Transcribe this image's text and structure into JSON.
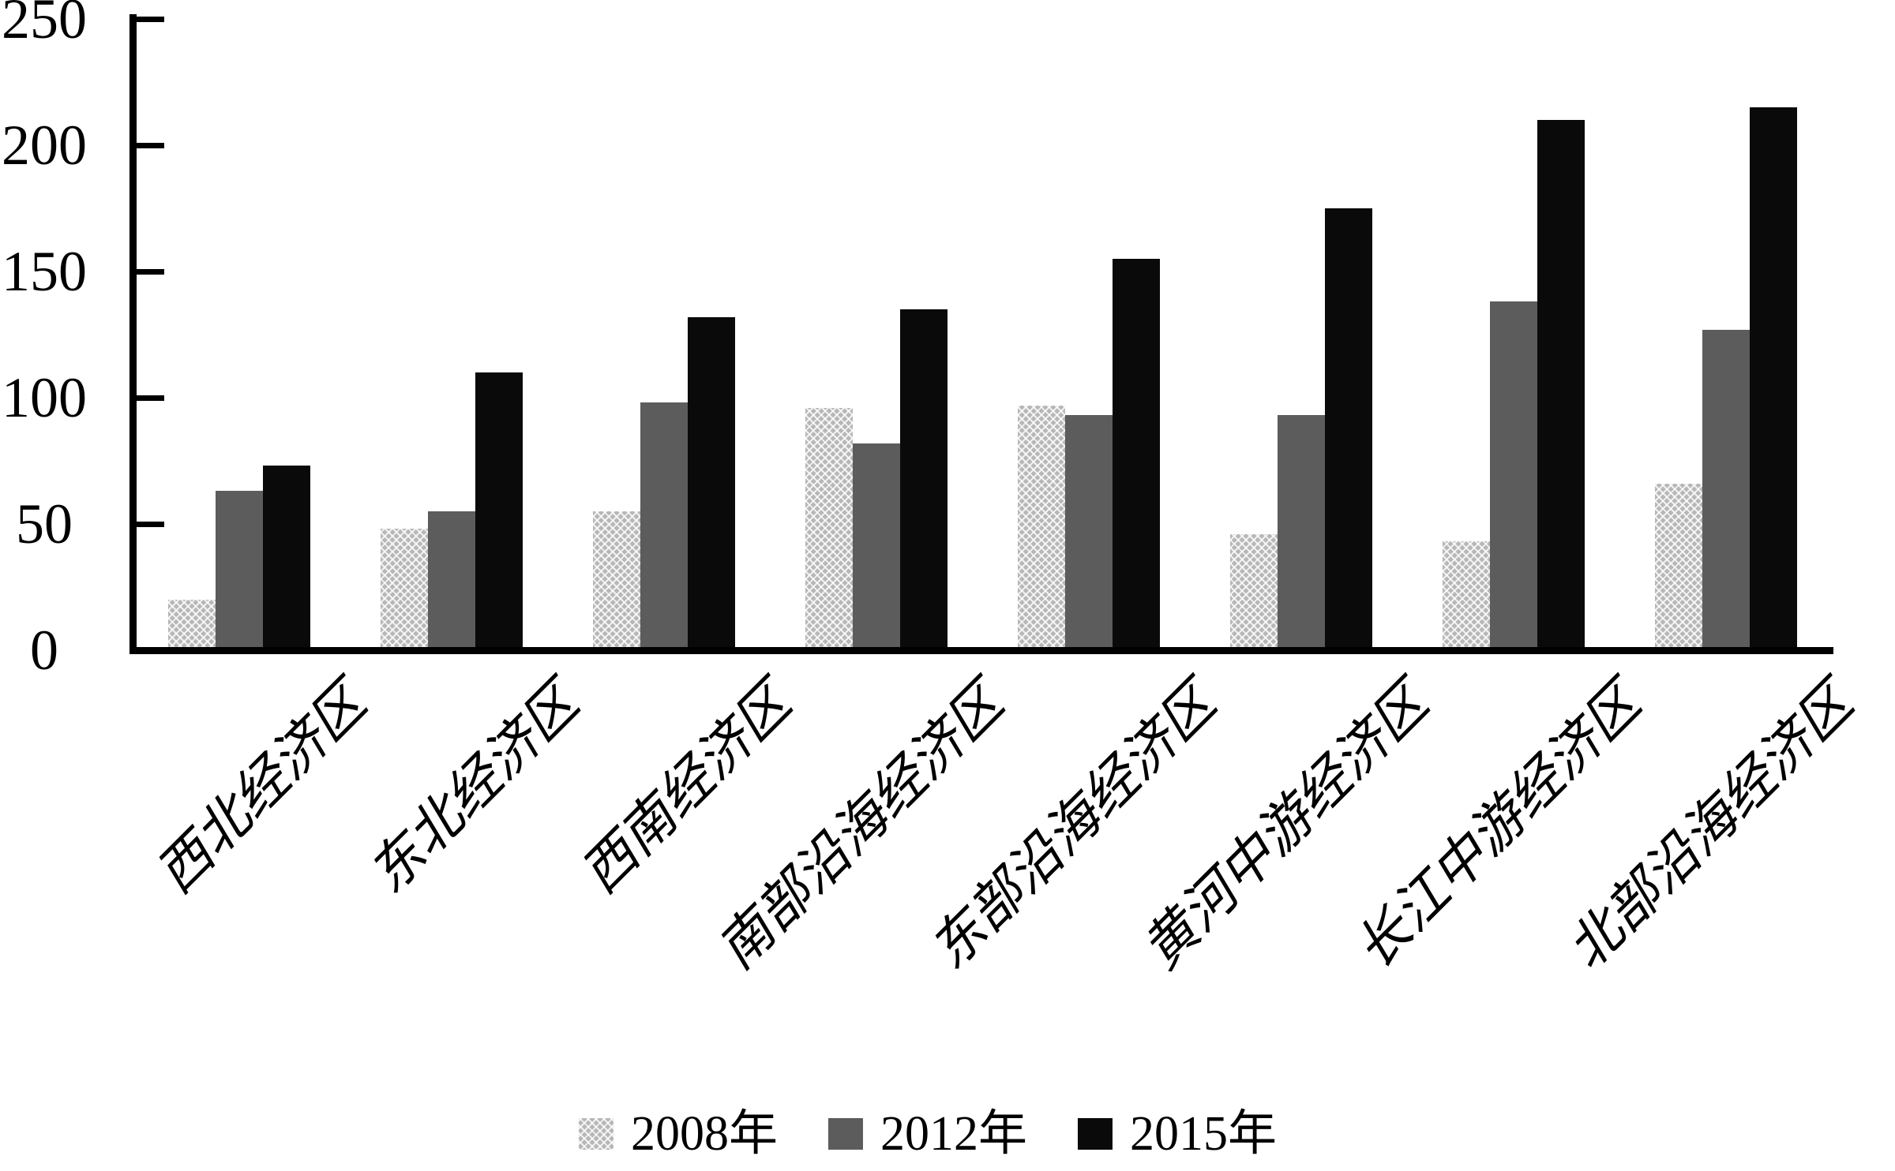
{
  "background": "#ffffff",
  "axis_color": "#000000",
  "chart_data": {
    "type": "bar",
    "title": "",
    "xlabel": "",
    "ylabel": "",
    "categories": [
      "西北经济区",
      "东北经济区",
      "西南经济区",
      "南部沿海经济区",
      "东部沿海经济区",
      "黄河中游经济区",
      "长江中游经济区",
      "北部沿海经济区"
    ],
    "series": [
      {
        "name": "2008年",
        "color": "#b7b7b7",
        "pattern": "crosshatch",
        "values": [
          20,
          48,
          55,
          96,
          97,
          46,
          43,
          66
        ]
      },
      {
        "name": "2012年",
        "color": "#5c5c5c",
        "pattern": "solid",
        "values": [
          63,
          55,
          98,
          82,
          93,
          93,
          138,
          127
        ]
      },
      {
        "name": "2015年",
        "color": "#0a0a0a",
        "pattern": "solid",
        "values": [
          73,
          110,
          132,
          135,
          155,
          175,
          210,
          215
        ]
      }
    ],
    "ylim": [
      0,
      250
    ],
    "yticks": [
      0,
      50,
      100,
      150,
      200,
      250
    ],
    "grid": false,
    "legend_position": "bottom",
    "x_tick_label_rotation_deg": -45
  }
}
